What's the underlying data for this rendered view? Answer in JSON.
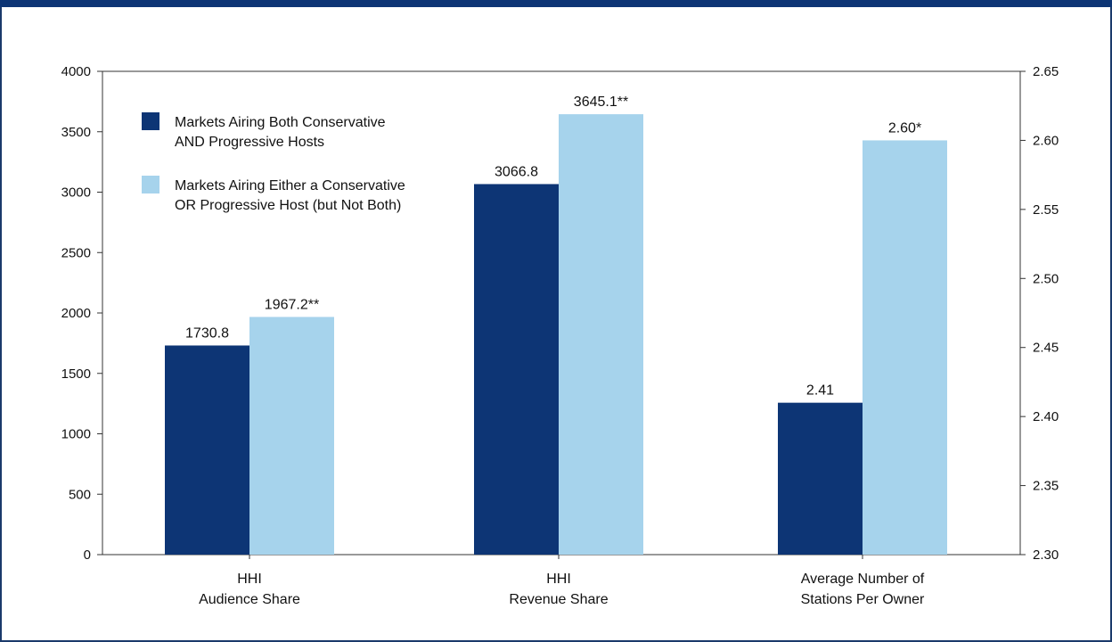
{
  "chart_data": {
    "type": "bar",
    "categories": [
      [
        "HHI",
        "Audience Share"
      ],
      [
        "HHI",
        "Revenue Share"
      ],
      [
        "Average Number of",
        "Stations Per Owner"
      ]
    ],
    "series": [
      {
        "name": [
          "Markets Airing Both Conservative",
          "AND Progressive Hosts"
        ],
        "color": "#0d3575",
        "values": [
          1730.8,
          3066.8,
          2.41
        ],
        "labels": [
          "1730.8",
          "3066.8",
          "2.41"
        ]
      },
      {
        "name": [
          "Markets Airing Either a Conservative",
          "OR Progressive Host (but Not Both)"
        ],
        "color": "#a6d3ec",
        "values": [
          1967.2,
          3645.1,
          2.6
        ],
        "labels": [
          "1967.2**",
          "3645.1**",
          "2.60*"
        ]
      }
    ],
    "axis_assignment": [
      "left",
      "left",
      "right"
    ],
    "left_axis": {
      "ylim": [
        0,
        4000
      ],
      "ticks": [
        "0",
        "500",
        "1000",
        "1500",
        "2000",
        "2500",
        "3000",
        "3500",
        "4000"
      ]
    },
    "right_axis": {
      "ylim": [
        2.3,
        2.65
      ],
      "ticks": [
        "2.30",
        "2.35",
        "2.40",
        "2.45",
        "2.50",
        "2.55",
        "2.60",
        "2.65"
      ]
    },
    "legend_position": "top-left",
    "grid": false
  }
}
